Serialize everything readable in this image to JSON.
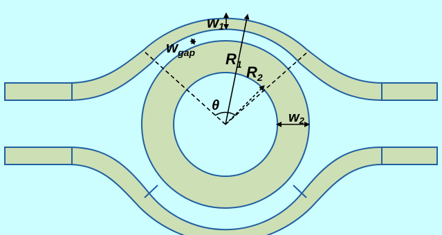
{
  "colors": {
    "background": "#ccfdff",
    "waveguide_fill": "#cddfb5",
    "waveguide_stroke": "#1f5fa0",
    "annotation": "#000000"
  },
  "labels": {
    "w1_main": "w",
    "w1_sub": "1",
    "wgap_main": "w",
    "wgap_sub": "gap",
    "r1_main": "R",
    "r1_sub": "1",
    "r2_main": "R",
    "r2_sub": "2",
    "theta": "θ",
    "w2_main": "w",
    "w2_sub": "2"
  }
}
